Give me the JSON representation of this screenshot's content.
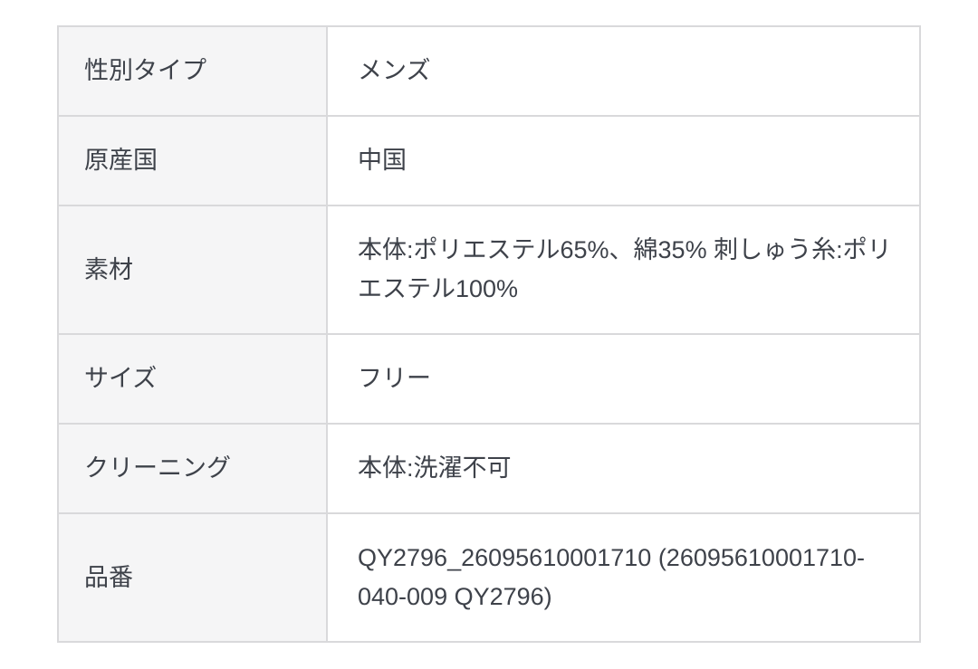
{
  "page": {
    "background": "#ffffff"
  },
  "colors": {
    "table_border": "#d9d9db",
    "label_cell_bg": "#f5f5f6",
    "value_cell_bg": "#ffffff",
    "text": "#3e424a"
  },
  "spec_table": {
    "rows": [
      {
        "label": "性別タイプ",
        "value": "メンズ"
      },
      {
        "label": "原産国",
        "value": "中国"
      },
      {
        "label": "素材",
        "value": "本体:ポリエステル65%、綿35% 刺しゅう糸:ポリエステル100%"
      },
      {
        "label": "サイズ",
        "value": "フリー"
      },
      {
        "label": "クリーニング",
        "value": "本体:洗濯不可"
      },
      {
        "label": "品番",
        "value": "QY2796_26095610001710 (26095610001710-040-009 QY2796)"
      }
    ]
  }
}
